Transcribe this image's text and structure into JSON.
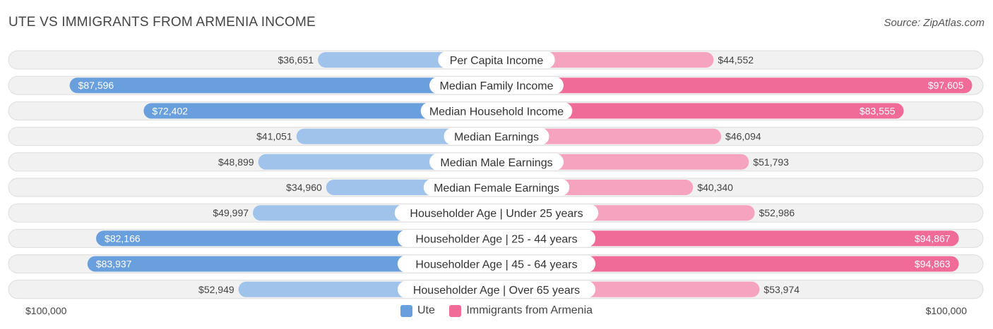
{
  "header": {
    "title": "UTE VS IMMIGRANTS FROM ARMENIA INCOME",
    "source": "Source: ZipAtlas.com"
  },
  "axis": {
    "left_label": "$100,000",
    "right_label": "$100,000"
  },
  "legend": [
    {
      "name": "Ute",
      "color": "#6a9fde"
    },
    {
      "name": "Immigrants from Armenia",
      "color": "#f06b98"
    }
  ],
  "colors": {
    "ute_strong": "#6a9fde",
    "ute_light": "#9fc3ea",
    "arm_strong": "#f06b98",
    "arm_light": "#f5a3bf",
    "track": "#f1f1f1",
    "track_border": "#dddddd"
  },
  "chart_data": {
    "type": "bar",
    "orientation": "diverging-horizontal",
    "title": "UTE VS IMMIGRANTS FROM ARMENIA INCOME",
    "xlim": [
      0,
      100000
    ],
    "categories": [
      "Per Capita Income",
      "Median Family Income",
      "Median Household Income",
      "Median Earnings",
      "Median Male Earnings",
      "Median Female Earnings",
      "Householder Age | Under 25 years",
      "Householder Age | 25 - 44 years",
      "Householder Age | 45 - 64 years",
      "Householder Age | Over 65 years"
    ],
    "series": [
      {
        "name": "Ute",
        "values": [
          36651,
          87596,
          72402,
          41051,
          48899,
          34960,
          49997,
          82166,
          83937,
          52949
        ],
        "labels": [
          "$36,651",
          "$87,596",
          "$72,402",
          "$41,051",
          "$48,899",
          "$34,960",
          "$49,997",
          "$82,166",
          "$83,937",
          "$52,949"
        ]
      },
      {
        "name": "Immigrants from Armenia",
        "values": [
          44552,
          97605,
          83555,
          46094,
          51793,
          40340,
          52986,
          94867,
          94863,
          53974
        ],
        "labels": [
          "$44,552",
          "$97,605",
          "$83,555",
          "$46,094",
          "$51,793",
          "$40,340",
          "$52,986",
          "$94,867",
          "$94,863",
          "$53,974"
        ]
      }
    ]
  }
}
